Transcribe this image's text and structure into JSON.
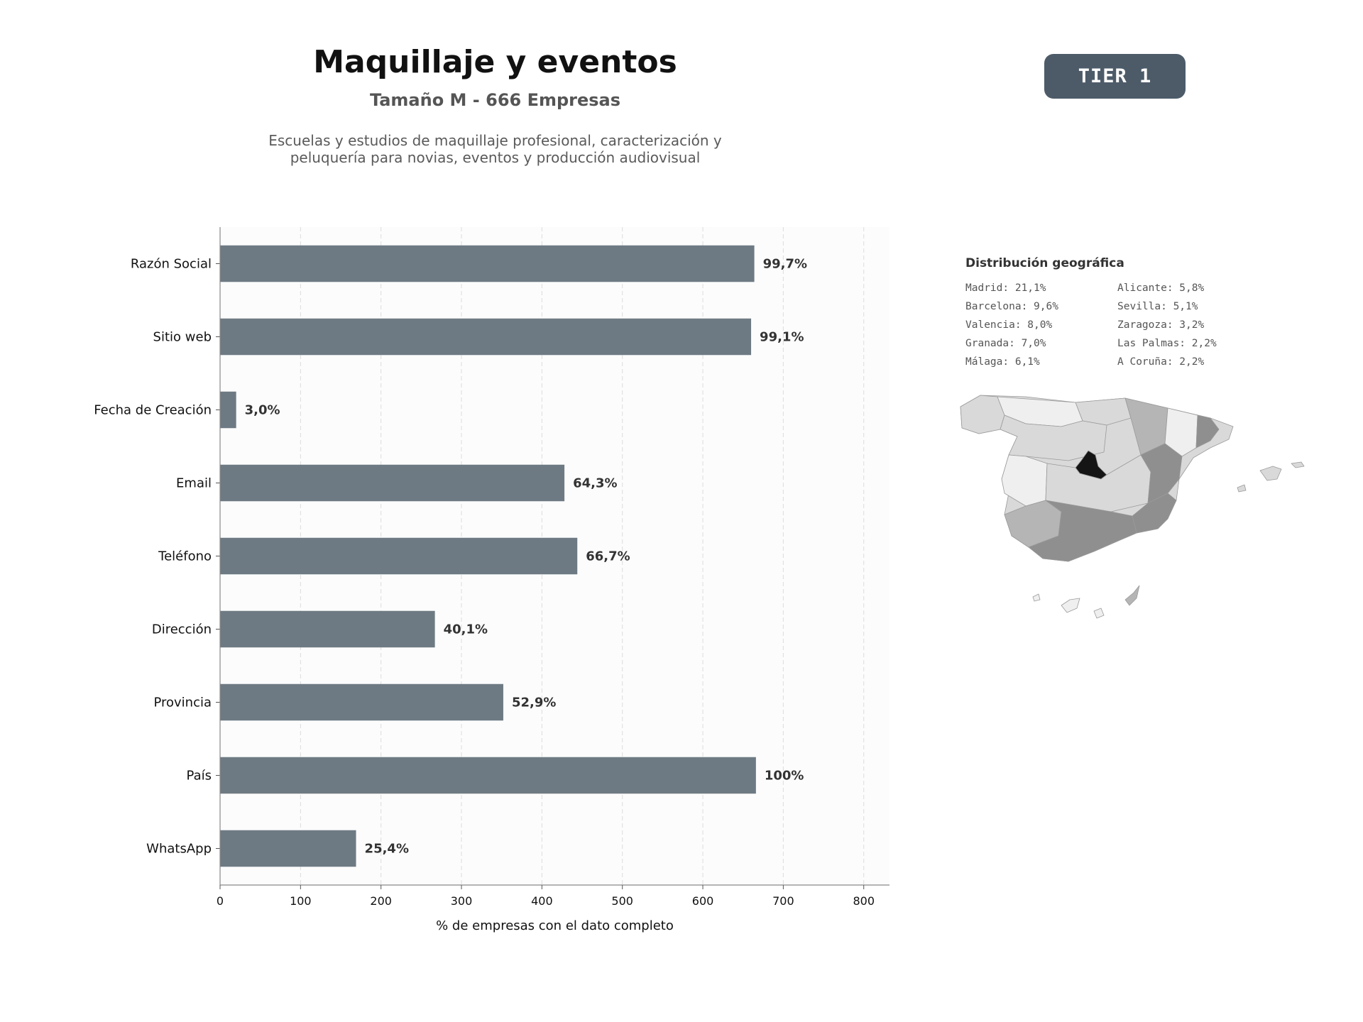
{
  "header": {
    "title": "Maquillaje y eventos",
    "subtitle": "Tamaño M - 666 Empresas",
    "description_line1": "Escuelas y estudios de maquillaje profesional, caracterización y",
    "description_line2": "peluquería para novias, eventos y producción audiovisual",
    "tier_label": "TIER 1",
    "tier_color": "#4d5b69"
  },
  "chart_data": {
    "type": "bar",
    "orientation": "horizontal",
    "categories": [
      "Razón Social",
      "Sitio web",
      "Fecha de Creación",
      "Email",
      "Teléfono",
      "Dirección",
      "Provincia",
      "País",
      "WhatsApp"
    ],
    "values": [
      664,
      660,
      20,
      428,
      444,
      267,
      352,
      666,
      169
    ],
    "value_labels": [
      "99,7%",
      "99,1%",
      "3,0%",
      "64,3%",
      "66,7%",
      "40,1%",
      "52,9%",
      "100%",
      "25,4%"
    ],
    "xlabel": "% de empresas con el dato completo",
    "ylabel": "",
    "xlim": [
      0,
      832
    ],
    "xticks": [
      0,
      100,
      200,
      300,
      400,
      500,
      600,
      700,
      800
    ],
    "grid": "vertical dashed",
    "bar_color": "#6e7a83",
    "background_color": "#fcfcfc"
  },
  "geo": {
    "title": "Distribución geográfica",
    "items": [
      "Madrid: 21,1%",
      "Barcelona: 9,6%",
      "Valencia: 8,0%",
      "Granada: 7,0%",
      "Málaga: 6,1%",
      "Alicante: 5,8%",
      "Sevilla: 5,1%",
      "Zaragoza: 3,2%",
      "Las Palmas: 2,2%",
      "A Coruña: 2,2%"
    ],
    "map_colors": {
      "highest": "#151515",
      "high": "#8f8f8f",
      "medium": "#b5b5b5",
      "low": "#d9d9d9",
      "lowest": "#efefef",
      "border": "#9a9a9a"
    }
  }
}
